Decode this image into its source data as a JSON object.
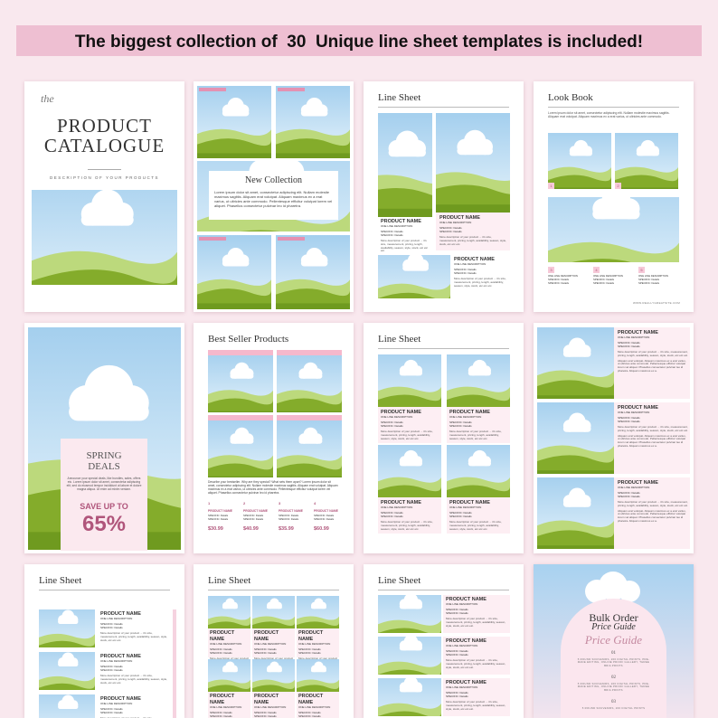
{
  "banner": "The biggest collection of  30  Unique line sheet templates is included!",
  "product": {
    "name": "PRODUCT NAME",
    "desc": "ONE LINE DESCRIPTION",
    "spec": "SPECIFIC: Details",
    "more": "More description of your product ... it's size, measurement, pricing, length, availability, season, style, stock, etc etc etc.",
    "extra": "Aliquam erat volutpat. Aliquam maximus ex a erat varius, ut ultricies ante commodo. Pellentesque efficitur volutpat lorem vel aliquet. Phasellus consectetur pulvinar leo id pharetra. Aliquam maximus ex a."
  },
  "catalogue": {
    "kicker": "the",
    "title": [
      "PRODUCT",
      "CATALOGUE"
    ],
    "subtitle": "DESCRIPTION OF YOUR PRODUCTS"
  },
  "new_collection": {
    "title": "New Collection",
    "body": "Lorem ipsum dolor sit amet, consectetur adipiscing elit. Nullam molestie maximus sagittis. Aliquam erat volutpat. Aliquam maximus ex a erat varius, ut ultricies ante commodo. Pellentesque efficitur volutpat lorem vel aliquet. Phasellus consectetur pulvinar leo id pharetra."
  },
  "line_sheet_1": {
    "title": "Line Sheet"
  },
  "look_book": {
    "title": "Look Book",
    "body": "Lorem ipsum dolor sit amet, consectetur adipiscing elit. Nullam molestie maximus sagittis. Aliquam erat volutpat. Aliquam maximus ex a erat varius, ut ultricies ante commodo.",
    "numbers": [
      "1",
      "2",
      "3",
      "4",
      "5"
    ],
    "url": "WWW.REALLYGREATSITE.COM"
  },
  "spring_deals": {
    "title": [
      "SPRING",
      "DEALS"
    ],
    "body": "Announce your special deals, like bundles, sales, offers etc. Lorem ipsum dolor sit amet, consectetur adipiscing elit, sed do eiusmod tempor incididunt ut labore et dolore magna aliqua. Ut enim ad minim veniam.",
    "offer": "SAVE UP TO",
    "discount": "65%"
  },
  "best_sellers": {
    "title": "Best Seller Products",
    "body": "Describe your bestseller. Why are they special? What sets them apart? Lorem ipsum dolor sit amet, consectetur adipiscing elit. Nullam molestie maximus sagittis. Aliquam erat volutpat. Aliquam maximus ex a erat varius, ut ultricies ante commodo. Pellentesque efficitur volutpat lorem vel aliquet. Phasellus consectetur pulvinar leo id pharetra.",
    "numbers": [
      "1",
      "2",
      "3",
      "4"
    ],
    "prices": [
      "$30.99",
      "$40.99",
      "$35.99",
      "$60.99"
    ]
  },
  "line_sheet_2": {
    "title": "Line Sheet"
  },
  "line_sheet_3": {
    "title": "Line Sheet"
  },
  "line_sheet_4": {
    "title": "Line Sheet"
  },
  "line_sheet_5": {
    "title": "Line Sheet"
  },
  "bulk_order": {
    "title": "Bulk Order",
    "subtitle": "Price Guide",
    "script": "Price Guide",
    "tiers": [
      {
        "num": "01",
        "text": "5 ROUND SOUVENIRS, 200 DIGITAL PRINTS, PRE-MADE EDITING, ONLINE PROOF GALLERY, THREE BRIA PRINTS"
      },
      {
        "num": "02",
        "text": "5 ROUND SOUVENIRS, 200 DIGITAL PRINTS, PRE-MADE EDITING, ONLINE PROOF GALLERY, THREE BRIA PRINTS"
      },
      {
        "num": "03",
        "text": "5 ROUND SOUVENIRS, 200 DIGITAL PRINTS"
      }
    ]
  }
}
